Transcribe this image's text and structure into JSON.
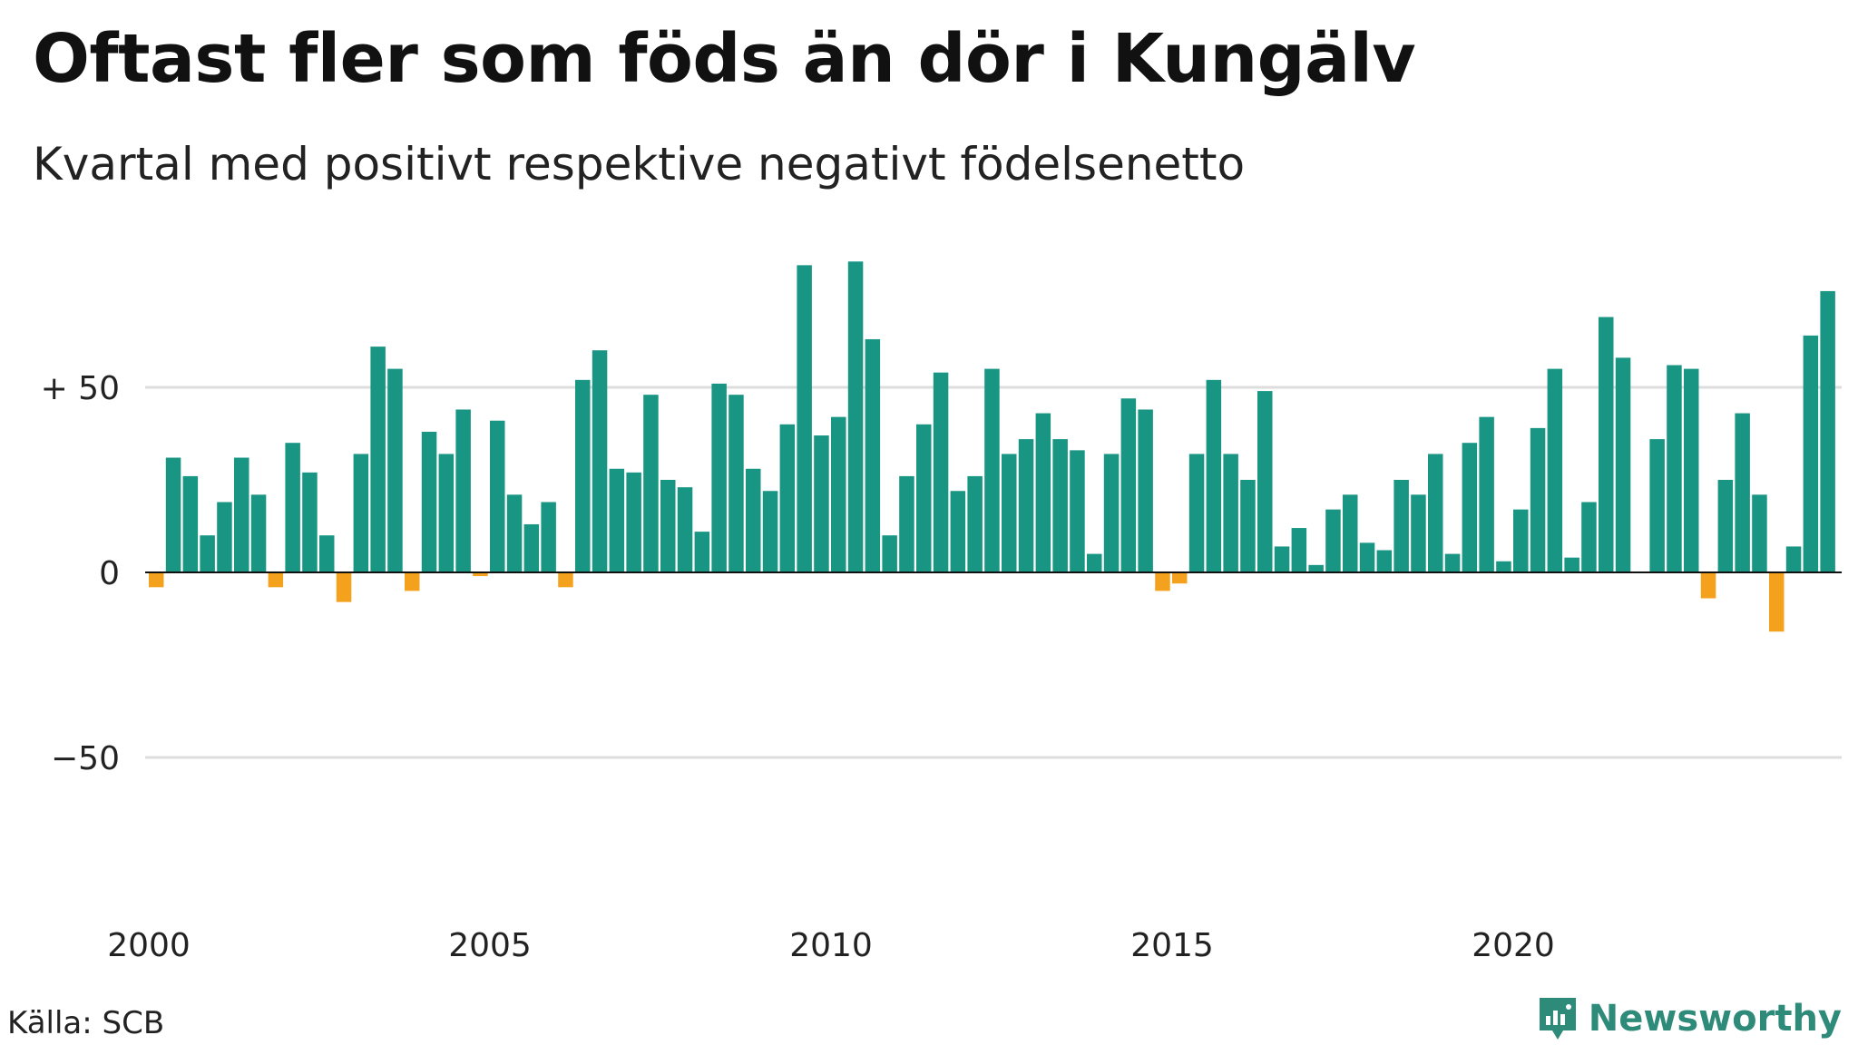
{
  "title": "Oftast fler som föds än dör i Kungälv",
  "subtitle": "Kvartal med positivt respektive negativt födelsenetto",
  "source": "Källa: SCB",
  "brand": {
    "name": "Newsworthy",
    "icon": "newsworthy-logo-icon",
    "color": "#2e8b7a"
  },
  "colors": {
    "positive": "#199683",
    "negative": "#f4a11e",
    "grid": "#dddddd",
    "axis": "#111111"
  },
  "chart_data": {
    "type": "bar",
    "title": "Oftast fler som föds än dör i Kungälv",
    "subtitle": "Kvartal med positivt respektive negativt födelsenetto",
    "ylim": [
      -100,
      100
    ],
    "y_ticks": [
      {
        "value": 50,
        "label": "+ 50"
      },
      {
        "value": 0,
        "label": "0"
      },
      {
        "value": -50,
        "label": "−50"
      }
    ],
    "x_ticks": [
      {
        "value": 2000,
        "label": "2000"
      },
      {
        "value": 2005,
        "label": "2005"
      },
      {
        "value": 2010,
        "label": "2010"
      },
      {
        "value": 2015,
        "label": "2015"
      },
      {
        "value": 2020,
        "label": "2020"
      }
    ],
    "x_start": 2000,
    "periods_per_year": 4,
    "grid": true,
    "values": [
      -4,
      31,
      26,
      10,
      19,
      31,
      21,
      -4,
      35,
      27,
      10,
      -8,
      32,
      61,
      55,
      -5,
      38,
      32,
      44,
      -1,
      41,
      21,
      13,
      19,
      -4,
      52,
      60,
      28,
      27,
      48,
      25,
      23,
      11,
      51,
      48,
      28,
      22,
      40,
      83,
      37,
      42,
      84,
      63,
      10,
      26,
      40,
      54,
      22,
      26,
      55,
      32,
      36,
      43,
      36,
      33,
      5,
      32,
      47,
      44,
      -5,
      -3,
      32,
      52,
      32,
      25,
      49,
      7,
      12,
      2,
      17,
      21,
      8,
      6,
      25,
      21,
      32,
      5,
      35,
      42,
      3,
      17,
      39,
      55,
      4,
      19,
      69,
      58,
      0,
      36,
      56,
      55,
      -7,
      25,
      43,
      21,
      -16,
      7,
      64,
      76
    ]
  }
}
